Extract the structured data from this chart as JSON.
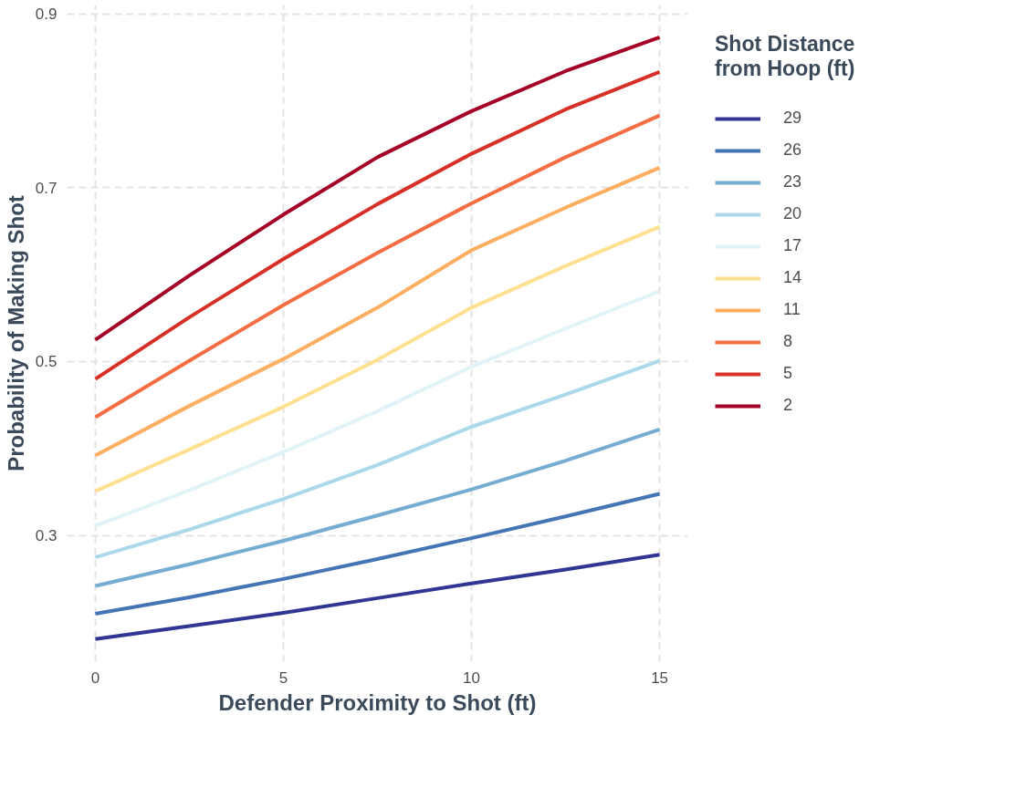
{
  "chart_data": {
    "type": "line",
    "xlabel": "Defender Proximity to Shot (ft)",
    "ylabel": "Probability of Making Shot",
    "legend_title": "Shot Distance\nfrom Hoop (ft)",
    "x": [
      0,
      2.5,
      5,
      7.5,
      10,
      12.5,
      15
    ],
    "xlim": [
      -0.75,
      15.75
    ],
    "ylim": [
      0.155,
      0.91
    ],
    "xticks": [
      0,
      5,
      10,
      15
    ],
    "yticks": [
      0.3,
      0.5,
      0.7,
      0.9
    ],
    "grid": true,
    "legend": "right",
    "line_style": "solid",
    "marker": "none",
    "series": [
      {
        "name": "29",
        "color": "#313695",
        "values": [
          0.181,
          0.196,
          0.211,
          0.228,
          0.245,
          0.261,
          0.278
        ]
      },
      {
        "name": "26",
        "color": "#4575b4",
        "values": [
          0.21,
          0.229,
          0.25,
          0.273,
          0.297,
          0.322,
          0.348
        ]
      },
      {
        "name": "23",
        "color": "#74add1",
        "values": [
          0.242,
          0.267,
          0.294,
          0.323,
          0.353,
          0.386,
          0.422
        ]
      },
      {
        "name": "20",
        "color": "#abd9e9",
        "values": [
          0.275,
          0.307,
          0.342,
          0.381,
          0.425,
          0.462,
          0.501
        ]
      },
      {
        "name": "17",
        "color": "#e0f3f8",
        "values": [
          0.311,
          0.352,
          0.396,
          0.443,
          0.494,
          0.538,
          0.581
        ]
      },
      {
        "name": "14",
        "color": "#fee090",
        "values": [
          0.351,
          0.399,
          0.448,
          0.502,
          0.562,
          0.61,
          0.655
        ]
      },
      {
        "name": "11",
        "color": "#fdae61",
        "values": [
          0.392,
          0.449,
          0.503,
          0.562,
          0.628,
          0.677,
          0.723
        ]
      },
      {
        "name": "8",
        "color": "#f46d43",
        "values": [
          0.436,
          0.501,
          0.565,
          0.625,
          0.682,
          0.735,
          0.783
        ]
      },
      {
        "name": "5",
        "color": "#d73027",
        "values": [
          0.48,
          0.551,
          0.618,
          0.681,
          0.739,
          0.79,
          0.833
        ]
      },
      {
        "name": "2",
        "color": "#a50026",
        "values": [
          0.525,
          0.599,
          0.669,
          0.735,
          0.788,
          0.834,
          0.873
        ]
      }
    ]
  }
}
